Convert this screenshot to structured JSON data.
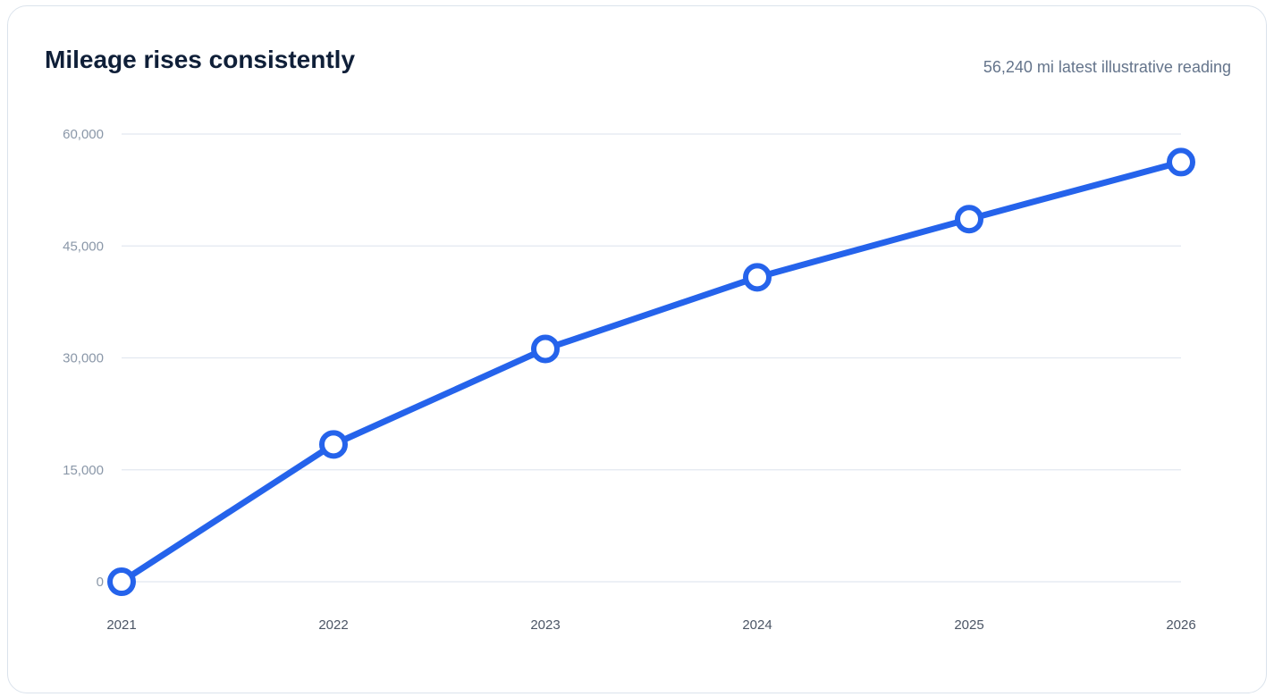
{
  "header": {
    "title": "Mileage rises consistently",
    "subtitle": "56,240 mi latest illustrative reading"
  },
  "colors": {
    "line": "#2563eb",
    "marker_fill": "#ffffff",
    "grid": "#e2e8f0",
    "title": "#0f1f38",
    "subtitle": "#64748b"
  },
  "chart_data": {
    "type": "line",
    "title": "Mileage rises consistently",
    "subtitle": "56,240 mi latest illustrative reading",
    "xlabel": "",
    "ylabel": "",
    "categories": [
      "2021",
      "2022",
      "2023",
      "2024",
      "2025",
      "2026"
    ],
    "series": [
      {
        "values": [
          0,
          18400,
          31200,
          40800,
          48600,
          56240
        ]
      }
    ],
    "ylim": [
      0,
      60000
    ],
    "yticks": [
      0,
      15000,
      30000,
      45000,
      60000
    ],
    "ytick_labels": [
      "0",
      "15,000",
      "30,000",
      "45,000",
      "60,000"
    ],
    "grid": true,
    "legend": "none"
  }
}
